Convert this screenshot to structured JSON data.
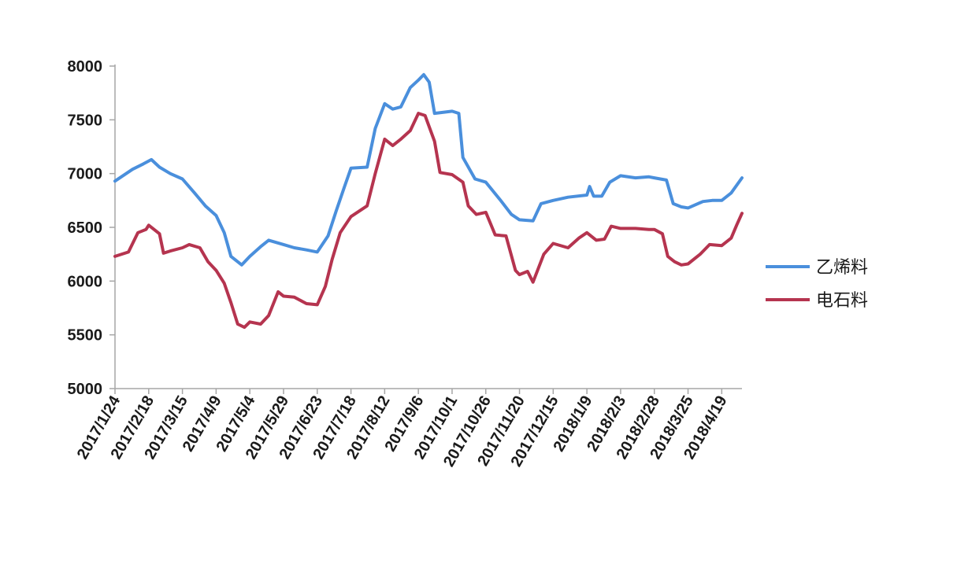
{
  "chart_data": {
    "type": "line",
    "title": "",
    "xlabel": "",
    "ylabel": "",
    "ylim": [
      5000,
      8000
    ],
    "yticks": [
      5000,
      5500,
      6000,
      6500,
      7000,
      7500,
      8000
    ],
    "x_tick_labels": [
      "2017/1/24",
      "2017/2/18",
      "2017/3/15",
      "2017/4/9",
      "2017/5/4",
      "2017/5/29",
      "2017/6/23",
      "2017/7/18",
      "2017/8/12",
      "2017/9/6",
      "2017/10/1",
      "2017/10/26",
      "2017/11/20",
      "2017/12/15",
      "2018/1/9",
      "2018/2/3",
      "2018/2/28",
      "2018/3/25",
      "2018/4/19"
    ],
    "xlim": [
      "2017/1/24",
      "2018/5/4"
    ],
    "grid": false,
    "legend_position": "right",
    "series": [
      {
        "name": "乙烯料",
        "color": "#4a8fdc",
        "points": [
          [
            "2017/1/24",
            6930
          ],
          [
            "2017/2/6",
            7040
          ],
          [
            "2017/2/14",
            7090
          ],
          [
            "2017/2/20",
            7130
          ],
          [
            "2017/2/26",
            7060
          ],
          [
            "2017/3/6",
            7000
          ],
          [
            "2017/3/15",
            6950
          ],
          [
            "2017/3/24",
            6820
          ],
          [
            "2017/4/1",
            6700
          ],
          [
            "2017/4/9",
            6610
          ],
          [
            "2017/4/15",
            6450
          ],
          [
            "2017/4/20",
            6230
          ],
          [
            "2017/4/28",
            6150
          ],
          [
            "2017/5/4",
            6230
          ],
          [
            "2017/5/12",
            6320
          ],
          [
            "2017/5/18",
            6380
          ],
          [
            "2017/5/29",
            6340
          ],
          [
            "2017/6/6",
            6310
          ],
          [
            "2017/6/15",
            6290
          ],
          [
            "2017/6/23",
            6270
          ],
          [
            "2017/7/1",
            6420
          ],
          [
            "2017/7/7",
            6650
          ],
          [
            "2017/7/13",
            6870
          ],
          [
            "2017/7/18",
            7050
          ],
          [
            "2017/7/30",
            7060
          ],
          [
            "2017/8/5",
            7420
          ],
          [
            "2017/8/12",
            7650
          ],
          [
            "2017/8/18",
            7600
          ],
          [
            "2017/8/24",
            7620
          ],
          [
            "2017/8/31",
            7800
          ],
          [
            "2017/9/6",
            7870
          ],
          [
            "2017/9/10",
            7920
          ],
          [
            "2017/9/14",
            7850
          ],
          [
            "2017/9/18",
            7560
          ],
          [
            "2017/10/1",
            7580
          ],
          [
            "2017/10/6",
            7560
          ],
          [
            "2017/10/9",
            7150
          ],
          [
            "2017/10/18",
            6950
          ],
          [
            "2017/10/26",
            6920
          ],
          [
            "2017/11/6",
            6750
          ],
          [
            "2017/11/14",
            6620
          ],
          [
            "2017/11/20",
            6570
          ],
          [
            "2017/11/30",
            6560
          ],
          [
            "2017/12/6",
            6720
          ],
          [
            "2017/12/15",
            6750
          ],
          [
            "2017/12/26",
            6780
          ],
          [
            "2018/1/9",
            6800
          ],
          [
            "2018/1/11",
            6880
          ],
          [
            "2018/1/14",
            6790
          ],
          [
            "2018/1/20",
            6790
          ],
          [
            "2018/1/26",
            6920
          ],
          [
            "2018/2/3",
            6980
          ],
          [
            "2018/2/14",
            6960
          ],
          [
            "2018/2/24",
            6970
          ],
          [
            "2018/2/28",
            6960
          ],
          [
            "2018/3/9",
            6940
          ],
          [
            "2018/3/14",
            6720
          ],
          [
            "2018/3/20",
            6690
          ],
          [
            "2018/3/25",
            6680
          ],
          [
            "2018/4/5",
            6740
          ],
          [
            "2018/4/12",
            6750
          ],
          [
            "2018/4/19",
            6750
          ],
          [
            "2018/4/26",
            6820
          ],
          [
            "2018/5/4",
            6960
          ]
        ]
      },
      {
        "name": "电石料",
        "color": "#b5344f",
        "points": [
          [
            "2017/1/24",
            6230
          ],
          [
            "2017/2/3",
            6270
          ],
          [
            "2017/2/10",
            6450
          ],
          [
            "2017/2/16",
            6480
          ],
          [
            "2017/2/18",
            6520
          ],
          [
            "2017/2/26",
            6440
          ],
          [
            "2017/3/1",
            6260
          ],
          [
            "2017/3/6",
            6280
          ],
          [
            "2017/3/15",
            6310
          ],
          [
            "2017/3/20",
            6340
          ],
          [
            "2017/3/28",
            6310
          ],
          [
            "2017/4/3",
            6180
          ],
          [
            "2017/4/9",
            6100
          ],
          [
            "2017/4/15",
            5980
          ],
          [
            "2017/4/20",
            5800
          ],
          [
            "2017/4/25",
            5600
          ],
          [
            "2017/4/30",
            5570
          ],
          [
            "2017/5/4",
            5620
          ],
          [
            "2017/5/12",
            5600
          ],
          [
            "2017/5/18",
            5680
          ],
          [
            "2017/5/25",
            5900
          ],
          [
            "2017/5/29",
            5860
          ],
          [
            "2017/6/6",
            5850
          ],
          [
            "2017/6/15",
            5790
          ],
          [
            "2017/6/23",
            5780
          ],
          [
            "2017/6/29",
            5950
          ],
          [
            "2017/7/4",
            6200
          ],
          [
            "2017/7/10",
            6450
          ],
          [
            "2017/7/18",
            6600
          ],
          [
            "2017/7/30",
            6700
          ],
          [
            "2017/8/5",
            7000
          ],
          [
            "2017/8/12",
            7320
          ],
          [
            "2017/8/18",
            7260
          ],
          [
            "2017/8/24",
            7320
          ],
          [
            "2017/8/31",
            7400
          ],
          [
            "2017/9/6",
            7560
          ],
          [
            "2017/9/11",
            7540
          ],
          [
            "2017/9/18",
            7300
          ],
          [
            "2017/9/22",
            7010
          ],
          [
            "2017/10/1",
            6990
          ],
          [
            "2017/10/9",
            6920
          ],
          [
            "2017/10/13",
            6700
          ],
          [
            "2017/10/19",
            6620
          ],
          [
            "2017/10/26",
            6640
          ],
          [
            "2017/11/2",
            6430
          ],
          [
            "2017/11/10",
            6420
          ],
          [
            "2017/11/17",
            6100
          ],
          [
            "2017/11/20",
            6060
          ],
          [
            "2017/11/26",
            6090
          ],
          [
            "2017/11/30",
            5990
          ],
          [
            "2017/12/8",
            6250
          ],
          [
            "2017/12/15",
            6350
          ],
          [
            "2017/12/26",
            6310
          ],
          [
            "2018/1/3",
            6400
          ],
          [
            "2018/1/9",
            6450
          ],
          [
            "2018/1/16",
            6380
          ],
          [
            "2018/1/22",
            6390
          ],
          [
            "2018/1/27",
            6510
          ],
          [
            "2018/2/3",
            6490
          ],
          [
            "2018/2/14",
            6490
          ],
          [
            "2018/2/24",
            6480
          ],
          [
            "2018/2/28",
            6480
          ],
          [
            "2018/3/6",
            6440
          ],
          [
            "2018/3/10",
            6230
          ],
          [
            "2018/3/15",
            6180
          ],
          [
            "2018/3/20",
            6150
          ],
          [
            "2018/3/25",
            6160
          ],
          [
            "2018/4/3",
            6250
          ],
          [
            "2018/4/10",
            6340
          ],
          [
            "2018/4/19",
            6330
          ],
          [
            "2018/4/26",
            6400
          ],
          [
            "2018/4/30",
            6520
          ],
          [
            "2018/5/4",
            6630
          ]
        ]
      }
    ]
  }
}
